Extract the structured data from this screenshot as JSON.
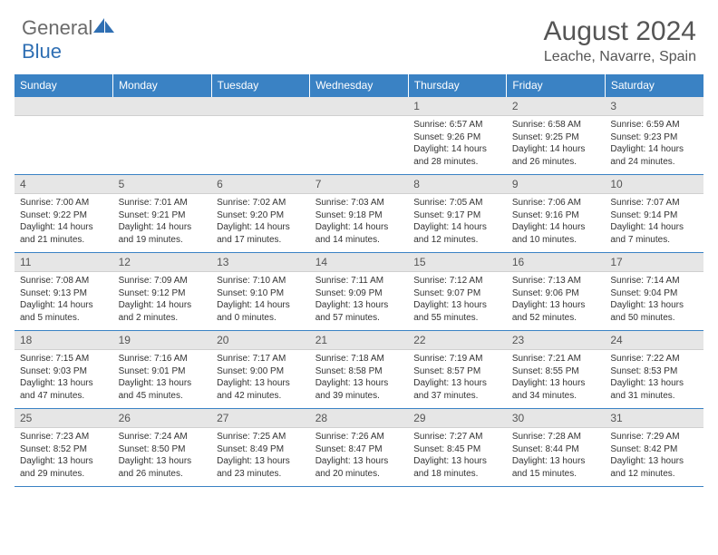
{
  "logo": {
    "text1": "General",
    "text2": "Blue"
  },
  "title": "August 2024",
  "location": "Leache, Navarre, Spain",
  "colors": {
    "header_bg": "#3a82c4",
    "header_text": "#ffffff",
    "daynum_bg": "#e6e6e6",
    "logo_gray": "#6b6b6b",
    "logo_blue": "#2f6fb3",
    "rule": "#3a82c4"
  },
  "daynames": [
    "Sunday",
    "Monday",
    "Tuesday",
    "Wednesday",
    "Thursday",
    "Friday",
    "Saturday"
  ],
  "weeks": [
    [
      {
        "n": "",
        "sr": "",
        "ss": "",
        "dl": ""
      },
      {
        "n": "",
        "sr": "",
        "ss": "",
        "dl": ""
      },
      {
        "n": "",
        "sr": "",
        "ss": "",
        "dl": ""
      },
      {
        "n": "",
        "sr": "",
        "ss": "",
        "dl": ""
      },
      {
        "n": "1",
        "sr": "Sunrise: 6:57 AM",
        "ss": "Sunset: 9:26 PM",
        "dl": "Daylight: 14 hours and 28 minutes."
      },
      {
        "n": "2",
        "sr": "Sunrise: 6:58 AM",
        "ss": "Sunset: 9:25 PM",
        "dl": "Daylight: 14 hours and 26 minutes."
      },
      {
        "n": "3",
        "sr": "Sunrise: 6:59 AM",
        "ss": "Sunset: 9:23 PM",
        "dl": "Daylight: 14 hours and 24 minutes."
      }
    ],
    [
      {
        "n": "4",
        "sr": "Sunrise: 7:00 AM",
        "ss": "Sunset: 9:22 PM",
        "dl": "Daylight: 14 hours and 21 minutes."
      },
      {
        "n": "5",
        "sr": "Sunrise: 7:01 AM",
        "ss": "Sunset: 9:21 PM",
        "dl": "Daylight: 14 hours and 19 minutes."
      },
      {
        "n": "6",
        "sr": "Sunrise: 7:02 AM",
        "ss": "Sunset: 9:20 PM",
        "dl": "Daylight: 14 hours and 17 minutes."
      },
      {
        "n": "7",
        "sr": "Sunrise: 7:03 AM",
        "ss": "Sunset: 9:18 PM",
        "dl": "Daylight: 14 hours and 14 minutes."
      },
      {
        "n": "8",
        "sr": "Sunrise: 7:05 AM",
        "ss": "Sunset: 9:17 PM",
        "dl": "Daylight: 14 hours and 12 minutes."
      },
      {
        "n": "9",
        "sr": "Sunrise: 7:06 AM",
        "ss": "Sunset: 9:16 PM",
        "dl": "Daylight: 14 hours and 10 minutes."
      },
      {
        "n": "10",
        "sr": "Sunrise: 7:07 AM",
        "ss": "Sunset: 9:14 PM",
        "dl": "Daylight: 14 hours and 7 minutes."
      }
    ],
    [
      {
        "n": "11",
        "sr": "Sunrise: 7:08 AM",
        "ss": "Sunset: 9:13 PM",
        "dl": "Daylight: 14 hours and 5 minutes."
      },
      {
        "n": "12",
        "sr": "Sunrise: 7:09 AM",
        "ss": "Sunset: 9:12 PM",
        "dl": "Daylight: 14 hours and 2 minutes."
      },
      {
        "n": "13",
        "sr": "Sunrise: 7:10 AM",
        "ss": "Sunset: 9:10 PM",
        "dl": "Daylight: 14 hours and 0 minutes."
      },
      {
        "n": "14",
        "sr": "Sunrise: 7:11 AM",
        "ss": "Sunset: 9:09 PM",
        "dl": "Daylight: 13 hours and 57 minutes."
      },
      {
        "n": "15",
        "sr": "Sunrise: 7:12 AM",
        "ss": "Sunset: 9:07 PM",
        "dl": "Daylight: 13 hours and 55 minutes."
      },
      {
        "n": "16",
        "sr": "Sunrise: 7:13 AM",
        "ss": "Sunset: 9:06 PM",
        "dl": "Daylight: 13 hours and 52 minutes."
      },
      {
        "n": "17",
        "sr": "Sunrise: 7:14 AM",
        "ss": "Sunset: 9:04 PM",
        "dl": "Daylight: 13 hours and 50 minutes."
      }
    ],
    [
      {
        "n": "18",
        "sr": "Sunrise: 7:15 AM",
        "ss": "Sunset: 9:03 PM",
        "dl": "Daylight: 13 hours and 47 minutes."
      },
      {
        "n": "19",
        "sr": "Sunrise: 7:16 AM",
        "ss": "Sunset: 9:01 PM",
        "dl": "Daylight: 13 hours and 45 minutes."
      },
      {
        "n": "20",
        "sr": "Sunrise: 7:17 AM",
        "ss": "Sunset: 9:00 PM",
        "dl": "Daylight: 13 hours and 42 minutes."
      },
      {
        "n": "21",
        "sr": "Sunrise: 7:18 AM",
        "ss": "Sunset: 8:58 PM",
        "dl": "Daylight: 13 hours and 39 minutes."
      },
      {
        "n": "22",
        "sr": "Sunrise: 7:19 AM",
        "ss": "Sunset: 8:57 PM",
        "dl": "Daylight: 13 hours and 37 minutes."
      },
      {
        "n": "23",
        "sr": "Sunrise: 7:21 AM",
        "ss": "Sunset: 8:55 PM",
        "dl": "Daylight: 13 hours and 34 minutes."
      },
      {
        "n": "24",
        "sr": "Sunrise: 7:22 AM",
        "ss": "Sunset: 8:53 PM",
        "dl": "Daylight: 13 hours and 31 minutes."
      }
    ],
    [
      {
        "n": "25",
        "sr": "Sunrise: 7:23 AM",
        "ss": "Sunset: 8:52 PM",
        "dl": "Daylight: 13 hours and 29 minutes."
      },
      {
        "n": "26",
        "sr": "Sunrise: 7:24 AM",
        "ss": "Sunset: 8:50 PM",
        "dl": "Daylight: 13 hours and 26 minutes."
      },
      {
        "n": "27",
        "sr": "Sunrise: 7:25 AM",
        "ss": "Sunset: 8:49 PM",
        "dl": "Daylight: 13 hours and 23 minutes."
      },
      {
        "n": "28",
        "sr": "Sunrise: 7:26 AM",
        "ss": "Sunset: 8:47 PM",
        "dl": "Daylight: 13 hours and 20 minutes."
      },
      {
        "n": "29",
        "sr": "Sunrise: 7:27 AM",
        "ss": "Sunset: 8:45 PM",
        "dl": "Daylight: 13 hours and 18 minutes."
      },
      {
        "n": "30",
        "sr": "Sunrise: 7:28 AM",
        "ss": "Sunset: 8:44 PM",
        "dl": "Daylight: 13 hours and 15 minutes."
      },
      {
        "n": "31",
        "sr": "Sunrise: 7:29 AM",
        "ss": "Sunset: 8:42 PM",
        "dl": "Daylight: 13 hours and 12 minutes."
      }
    ]
  ]
}
